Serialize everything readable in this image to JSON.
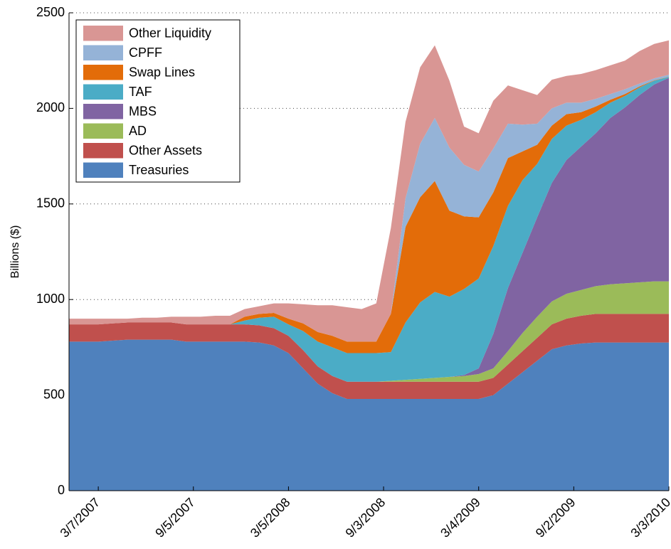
{
  "chart_data": {
    "type": "stacked-area",
    "ylabel": "Billions ($)",
    "x": [
      "2007-01-10",
      "2007-02-07",
      "2007-03-07",
      "2007-04-04",
      "2007-05-02",
      "2007-05-30",
      "2007-06-27",
      "2007-07-25",
      "2007-08-22",
      "2007-09-19",
      "2007-10-17",
      "2007-11-14",
      "2007-12-12",
      "2008-01-09",
      "2008-02-06",
      "2008-03-05",
      "2008-04-02",
      "2008-04-30",
      "2008-05-28",
      "2008-06-25",
      "2008-07-23",
      "2008-08-20",
      "2008-09-17",
      "2008-10-15",
      "2008-11-12",
      "2008-12-10",
      "2009-01-07",
      "2009-02-04",
      "2009-03-04",
      "2009-04-01",
      "2009-04-29",
      "2009-05-27",
      "2009-06-24",
      "2009-07-22",
      "2009-08-19",
      "2009-09-16",
      "2009-10-14",
      "2009-11-11",
      "2009-12-09",
      "2010-01-06",
      "2010-02-03",
      "2010-03-03"
    ],
    "xlim": [
      "2007-01-10",
      "2010-03-03"
    ],
    "xticks": [
      {
        "value": "2007-03-07",
        "label": "3/7/2007"
      },
      {
        "value": "2007-09-05",
        "label": "9/5/2007"
      },
      {
        "value": "2008-03-05",
        "label": "3/5/2008"
      },
      {
        "value": "2008-09-03",
        "label": "9/3/2008"
      },
      {
        "value": "2009-03-04",
        "label": "3/4/2009"
      },
      {
        "value": "2009-09-02",
        "label": "9/2/2009"
      },
      {
        "value": "2010-03-03",
        "label": "3/3/2010"
      }
    ],
    "ylim": [
      0,
      2500
    ],
    "yticks": [
      0,
      500,
      1000,
      1500,
      2000,
      2500
    ],
    "grid": true,
    "legend": "upper-left",
    "series": [
      {
        "name": "Treasuries",
        "color": "#4f81bd",
        "values": [
          780,
          780,
          780,
          785,
          790,
          790,
          790,
          790,
          780,
          780,
          780,
          780,
          780,
          775,
          760,
          720,
          640,
          560,
          510,
          480,
          480,
          480,
          480,
          480,
          480,
          480,
          480,
          480,
          480,
          500,
          560,
          620,
          680,
          740,
          760,
          770,
          775,
          775,
          775,
          775,
          775,
          775
        ]
      },
      {
        "name": "Other Assets",
        "color": "#c0504d",
        "values": [
          90,
          90,
          90,
          90,
          90,
          90,
          90,
          90,
          90,
          90,
          90,
          90,
          90,
          90,
          90,
          90,
          95,
          90,
          90,
          90,
          90,
          90,
          90,
          90,
          90,
          90,
          90,
          90,
          90,
          90,
          100,
          110,
          120,
          130,
          140,
          145,
          150,
          150,
          150,
          150,
          150,
          150
        ]
      },
      {
        "name": "AD",
        "color": "#9bbb59",
        "values": [
          0,
          0,
          0,
          0,
          0,
          0,
          0,
          0,
          0,
          0,
          0,
          0,
          0,
          0,
          0,
          0,
          0,
          0,
          0,
          0,
          0,
          0,
          5,
          10,
          15,
          20,
          25,
          30,
          40,
          50,
          70,
          95,
          110,
          120,
          130,
          135,
          145,
          155,
          160,
          165,
          170,
          170
        ]
      },
      {
        "name": "MBS",
        "color": "#8064a2",
        "values": [
          0,
          0,
          0,
          0,
          0,
          0,
          0,
          0,
          0,
          0,
          0,
          0,
          0,
          0,
          0,
          0,
          0,
          0,
          0,
          0,
          0,
          0,
          0,
          0,
          0,
          0,
          0,
          5,
          30,
          180,
          330,
          420,
          520,
          620,
          700,
          750,
          800,
          870,
          920,
          980,
          1030,
          1065
        ]
      },
      {
        "name": "TAF",
        "color": "#4bacc6",
        "values": [
          0,
          0,
          0,
          0,
          0,
          0,
          0,
          0,
          0,
          0,
          0,
          0,
          20,
          40,
          60,
          60,
          100,
          130,
          150,
          150,
          150,
          150,
          150,
          300,
          400,
          450,
          420,
          450,
          470,
          460,
          430,
          380,
          280,
          230,
          180,
          140,
          110,
          80,
          60,
          40,
          20,
          5
        ]
      },
      {
        "name": "Swap Lines",
        "color": "#e36c09",
        "values": [
          0,
          0,
          0,
          0,
          0,
          0,
          0,
          0,
          0,
          0,
          0,
          0,
          20,
          20,
          20,
          30,
          40,
          50,
          60,
          60,
          60,
          60,
          200,
          500,
          550,
          580,
          450,
          380,
          320,
          280,
          250,
          150,
          100,
          70,
          60,
          40,
          30,
          15,
          10,
          5,
          2,
          1
        ]
      },
      {
        "name": "CPFF",
        "color": "#95b3d7",
        "values": [
          0,
          0,
          0,
          0,
          0,
          0,
          0,
          0,
          0,
          0,
          0,
          0,
          0,
          0,
          0,
          0,
          0,
          0,
          0,
          0,
          0,
          0,
          0,
          150,
          280,
          330,
          330,
          270,
          240,
          230,
          180,
          140,
          110,
          90,
          60,
          50,
          40,
          30,
          25,
          15,
          10,
          10
        ]
      },
      {
        "name": "Other Liquidity",
        "color": "#d99694",
        "values": [
          30,
          30,
          30,
          25,
          20,
          25,
          25,
          30,
          40,
          40,
          45,
          45,
          40,
          40,
          50,
          80,
          100,
          140,
          160,
          180,
          170,
          200,
          450,
          400,
          400,
          380,
          350,
          200,
          200,
          250,
          200,
          180,
          150,
          150,
          140,
          150,
          150,
          150,
          150,
          170,
          180,
          180
        ]
      }
    ]
  }
}
